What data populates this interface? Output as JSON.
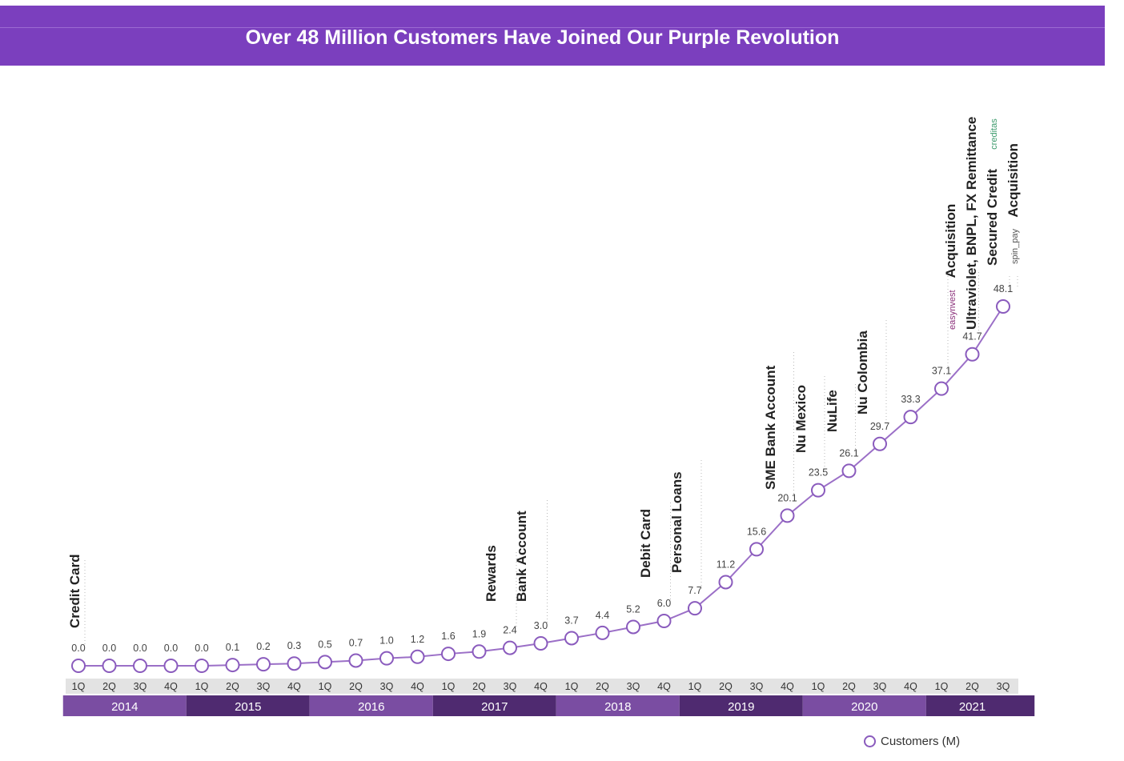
{
  "title": "Over 48 Million Customers Have Joined Our Purple Revolution",
  "colors": {
    "title_bg": "#7b3fbe",
    "line": "#9b6fc7",
    "year_dark": "#4f2a70",
    "year_light": "#7a4da2",
    "quarter_bg": "#e3e3e3"
  },
  "chart_data": {
    "type": "line",
    "title": "Over 48 Million Customers Have Joined Our Purple Revolution",
    "xlabel": "",
    "ylabel": "",
    "grid": false,
    "legend": "bottom-right",
    "categories": [
      "1Q",
      "2Q",
      "3Q",
      "4Q",
      "1Q",
      "2Q",
      "3Q",
      "4Q",
      "1Q",
      "2Q",
      "3Q",
      "4Q",
      "1Q",
      "2Q",
      "3Q",
      "4Q",
      "1Q",
      "2Q",
      "3Q",
      "4Q",
      "1Q",
      "2Q",
      "3Q",
      "4Q",
      "1Q",
      "2Q",
      "3Q",
      "4Q",
      "1Q",
      "2Q",
      "3Q"
    ],
    "years": [
      {
        "label": "2014",
        "quarters": 4
      },
      {
        "label": "2015",
        "quarters": 4
      },
      {
        "label": "2016",
        "quarters": 4
      },
      {
        "label": "2017",
        "quarters": 4
      },
      {
        "label": "2018",
        "quarters": 4
      },
      {
        "label": "2019",
        "quarters": 4
      },
      {
        "label": "2020",
        "quarters": 4
      },
      {
        "label": "2021",
        "quarters": 3
      }
    ],
    "series": [
      {
        "name": "Customers (M)",
        "values": [
          0.0,
          0.0,
          0.0,
          0.0,
          0.0,
          0.1,
          0.2,
          0.3,
          0.5,
          0.7,
          1.0,
          1.2,
          1.6,
          1.9,
          2.4,
          3.0,
          3.7,
          4.4,
          5.2,
          6.0,
          7.7,
          11.2,
          15.6,
          20.1,
          23.5,
          26.1,
          29.7,
          33.3,
          37.1,
          41.7,
          48.1
        ],
        "labels": [
          "0.0",
          "0.0",
          "0.0",
          "0.0",
          "0.0",
          "0.1",
          "0.2",
          "0.3",
          "0.5",
          "0.7",
          "1.0",
          "1.2",
          "1.6",
          "1.9",
          "2.4",
          "3.0",
          "3.7",
          "4.4",
          "5.2",
          "6.0",
          "7.7",
          "11.2",
          "15.6",
          "20.1",
          "23.5",
          "26.1",
          "29.7",
          "33.3",
          "37.1",
          "41.7",
          "48.1"
        ]
      }
    ],
    "annotations": [
      {
        "index": 0,
        "lines": [
          "Credit Card"
        ]
      },
      {
        "index": 14,
        "lines": [
          "Rewards"
        ]
      },
      {
        "index": 15,
        "lines": [
          "Bank Account"
        ]
      },
      {
        "index": 19,
        "lines": [
          "Debit Card"
        ]
      },
      {
        "index": 20,
        "lines": [
          "Personal Loans"
        ]
      },
      {
        "index": 23,
        "lines": [
          "SME Bank Account"
        ]
      },
      {
        "index": 24,
        "lines": [
          "Nu Mexico"
        ]
      },
      {
        "index": 25,
        "lines": [
          "NuLife"
        ]
      },
      {
        "index": 26,
        "lines": [
          "Nu Colombia"
        ]
      },
      {
        "index": 28,
        "lines": [
          "easynvest",
          "Acquisition"
        ]
      },
      {
        "index": 29,
        "lines": [
          "Ultraviolet, BNPL, FX Remittance"
        ]
      },
      {
        "index": 30,
        "lines": [
          "Secured Credit",
          "creditas"
        ]
      },
      {
        "index": 31,
        "lines": [
          "spin_pay",
          "Acquisition"
        ]
      }
    ]
  }
}
